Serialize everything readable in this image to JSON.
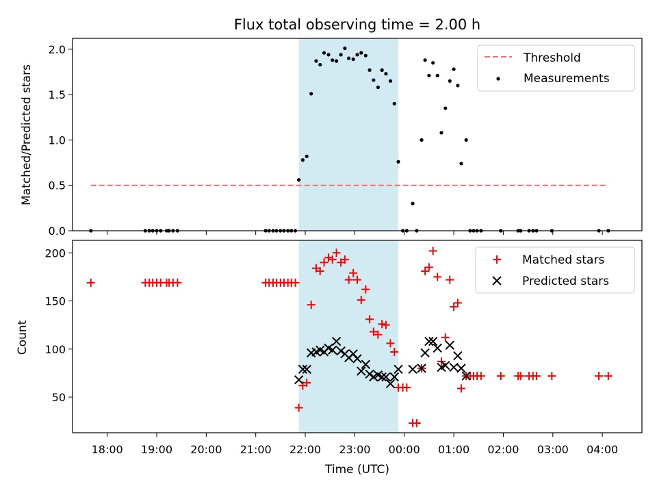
{
  "title": "Flux total observing time = 2.00 h",
  "colors": {
    "threshold": "#ff6b6b",
    "measurements": "#000000",
    "matched": "#ff0000",
    "predicted": "#000000",
    "band": "#add8e6"
  },
  "chart_data": [
    {
      "type": "scatter",
      "panel": "top",
      "title": "Flux total observing time = 2.00 h",
      "xlabel": "",
      "ylabel": "Matched/Predicted stars",
      "xlim": [
        17.3,
        28.8
      ],
      "ylim": [
        0,
        2.12
      ],
      "yticks": [
        0,
        0.5,
        1,
        1.5,
        2
      ],
      "ytick_labels": [
        "0.0",
        "0.5",
        "1.0",
        "1.5",
        "2.0"
      ],
      "shaded_region": [
        21.87,
        23.88
      ],
      "threshold": {
        "name": "Threshold",
        "value": 0.5,
        "x": [
          17.67,
          28.12
        ]
      },
      "legend": [
        "Threshold",
        "Measurements"
      ],
      "series": [
        {
          "name": "Measurements",
          "points": [
            [
              17.67,
              0
            ],
            [
              18.77,
              0
            ],
            [
              18.85,
              0
            ],
            [
              18.92,
              0
            ],
            [
              19.0,
              0
            ],
            [
              19.08,
              0
            ],
            [
              19.2,
              0
            ],
            [
              19.25,
              0
            ],
            [
              19.33,
              0
            ],
            [
              19.42,
              0
            ],
            [
              21.2,
              0
            ],
            [
              21.27,
              0
            ],
            [
              21.35,
              0
            ],
            [
              21.42,
              0
            ],
            [
              21.5,
              0
            ],
            [
              21.57,
              0
            ],
            [
              21.65,
              0
            ],
            [
              21.72,
              0
            ],
            [
              21.8,
              0
            ],
            [
              21.87,
              0.56
            ],
            [
              21.95,
              0.78
            ],
            [
              22.03,
              0.82
            ],
            [
              22.12,
              1.51
            ],
            [
              22.22,
              1.87
            ],
            [
              22.3,
              1.83
            ],
            [
              22.38,
              1.96
            ],
            [
              22.47,
              1.94
            ],
            [
              22.55,
              1.88
            ],
            [
              22.63,
              1.87
            ],
            [
              22.72,
              1.94
            ],
            [
              22.8,
              2.01
            ],
            [
              22.88,
              1.9
            ],
            [
              22.97,
              1.89
            ],
            [
              23.05,
              1.94
            ],
            [
              23.13,
              1.96
            ],
            [
              23.22,
              1.93
            ],
            [
              23.3,
              1.77
            ],
            [
              23.38,
              1.66
            ],
            [
              23.47,
              1.58
            ],
            [
              23.55,
              1.77
            ],
            [
              23.63,
              1.73
            ],
            [
              23.72,
              1.65
            ],
            [
              23.8,
              1.4
            ],
            [
              23.88,
              0.76
            ],
            [
              23.97,
              0
            ],
            [
              24.05,
              0
            ],
            [
              24.17,
              0.3
            ],
            [
              24.25,
              0
            ],
            [
              24.35,
              1.0
            ],
            [
              24.42,
              1.88
            ],
            [
              24.5,
              1.71
            ],
            [
              24.58,
              1.85
            ],
            [
              24.67,
              1.71
            ],
            [
              24.75,
              1.08
            ],
            [
              24.83,
              1.35
            ],
            [
              24.92,
              1.65
            ],
            [
              25.0,
              1.78
            ],
            [
              25.08,
              1.6
            ],
            [
              25.15,
              0.74
            ],
            [
              25.25,
              1.0
            ],
            [
              25.33,
              0
            ],
            [
              25.4,
              0
            ],
            [
              25.47,
              0
            ],
            [
              25.55,
              0
            ],
            [
              25.95,
              0
            ],
            [
              26.3,
              0
            ],
            [
              26.35,
              0
            ],
            [
              26.52,
              0
            ],
            [
              26.6,
              0
            ],
            [
              26.67,
              0
            ],
            [
              26.98,
              0
            ],
            [
              27.93,
              0
            ],
            [
              28.12,
              0
            ]
          ]
        }
      ]
    },
    {
      "type": "scatter",
      "panel": "bottom",
      "xlabel": "Time (UTC)",
      "ylabel": "Count",
      "xlim": [
        17.3,
        28.8
      ],
      "ylim": [
        13,
        213
      ],
      "yticks": [
        50,
        100,
        150,
        200
      ],
      "ytick_labels": [
        "50",
        "100",
        "150",
        "200"
      ],
      "xticks": [
        18,
        19,
        20,
        21,
        22,
        23,
        24,
        25,
        26,
        27,
        28
      ],
      "xtick_labels": [
        "18:00",
        "19:00",
        "20:00",
        "21:00",
        "22:00",
        "23:00",
        "00:00",
        "01:00",
        "02:00",
        "03:00",
        "04:00"
      ],
      "shaded_region": [
        21.87,
        23.88
      ],
      "legend": [
        "Matched stars",
        "Predicted stars"
      ],
      "series": [
        {
          "name": "Matched stars",
          "marker": "plus",
          "points": [
            [
              17.67,
              169
            ],
            [
              18.77,
              169
            ],
            [
              18.85,
              169
            ],
            [
              18.92,
              169
            ],
            [
              19.0,
              169
            ],
            [
              19.08,
              169
            ],
            [
              19.2,
              169
            ],
            [
              19.25,
              169
            ],
            [
              19.33,
              169
            ],
            [
              19.42,
              169
            ],
            [
              21.2,
              169
            ],
            [
              21.27,
              169
            ],
            [
              21.35,
              169
            ],
            [
              21.42,
              169
            ],
            [
              21.5,
              169
            ],
            [
              21.57,
              169
            ],
            [
              21.65,
              169
            ],
            [
              21.72,
              169
            ],
            [
              21.8,
              169
            ],
            [
              21.87,
              39
            ],
            [
              21.95,
              62
            ],
            [
              22.03,
              65
            ],
            [
              22.12,
              146
            ],
            [
              22.22,
              184
            ],
            [
              22.3,
              181
            ],
            [
              22.38,
              190
            ],
            [
              22.47,
              195
            ],
            [
              22.55,
              193
            ],
            [
              22.63,
              200
            ],
            [
              22.72,
              190
            ],
            [
              22.8,
              193
            ],
            [
              22.88,
              172
            ],
            [
              22.97,
              179
            ],
            [
              23.05,
              172
            ],
            [
              23.13,
              151
            ],
            [
              23.22,
              162
            ],
            [
              23.3,
              131
            ],
            [
              23.38,
              118
            ],
            [
              23.47,
              115
            ],
            [
              23.55,
              126
            ],
            [
              23.63,
              125
            ],
            [
              23.72,
              106
            ],
            [
              23.8,
              97
            ],
            [
              23.88,
              60
            ],
            [
              23.97,
              60
            ],
            [
              24.05,
              60
            ],
            [
              24.17,
              23
            ],
            [
              24.25,
              23
            ],
            [
              24.35,
              80
            ],
            [
              24.42,
              181
            ],
            [
              24.5,
              185
            ],
            [
              24.58,
              202
            ],
            [
              24.67,
              175
            ],
            [
              24.75,
              87
            ],
            [
              24.83,
              112
            ],
            [
              24.92,
              172
            ],
            [
              25.0,
              144
            ],
            [
              25.08,
              148
            ],
            [
              25.15,
              59
            ],
            [
              25.25,
              72
            ],
            [
              25.33,
              72
            ],
            [
              25.4,
              72
            ],
            [
              25.47,
              72
            ],
            [
              25.55,
              72
            ],
            [
              25.95,
              72
            ],
            [
              26.3,
              72
            ],
            [
              26.35,
              72
            ],
            [
              26.52,
              72
            ],
            [
              26.6,
              72
            ],
            [
              26.67,
              72
            ],
            [
              26.98,
              72
            ],
            [
              27.93,
              72
            ],
            [
              28.12,
              72
            ]
          ]
        },
        {
          "name": "Predicted stars",
          "marker": "x",
          "points": [
            [
              21.87,
              68
            ],
            [
              21.95,
              79
            ],
            [
              22.03,
              79
            ],
            [
              22.12,
              96
            ],
            [
              22.22,
              97
            ],
            [
              22.3,
              99
            ],
            [
              22.38,
              97
            ],
            [
              22.47,
              101
            ],
            [
              22.55,
              99
            ],
            [
              22.63,
              108
            ],
            [
              22.72,
              98
            ],
            [
              22.8,
              95
            ],
            [
              22.88,
              91
            ],
            [
              22.97,
              95
            ],
            [
              23.05,
              90
            ],
            [
              23.13,
              77
            ],
            [
              23.22,
              84
            ],
            [
              23.3,
              74
            ],
            [
              23.38,
              71
            ],
            [
              23.47,
              73
            ],
            [
              23.55,
              71
            ],
            [
              23.63,
              71
            ],
            [
              23.72,
              64
            ],
            [
              23.8,
              71
            ],
            [
              23.88,
              79
            ],
            [
              24.17,
              79
            ],
            [
              24.35,
              80
            ],
            [
              24.42,
              96
            ],
            [
              24.5,
              108
            ],
            [
              24.58,
              108
            ],
            [
              24.67,
              101
            ],
            [
              24.75,
              81
            ],
            [
              24.83,
              83
            ],
            [
              24.92,
              104
            ],
            [
              25.0,
              81
            ],
            [
              25.08,
              93
            ],
            [
              25.15,
              80
            ],
            [
              25.25,
              72
            ]
          ]
        }
      ]
    }
  ]
}
